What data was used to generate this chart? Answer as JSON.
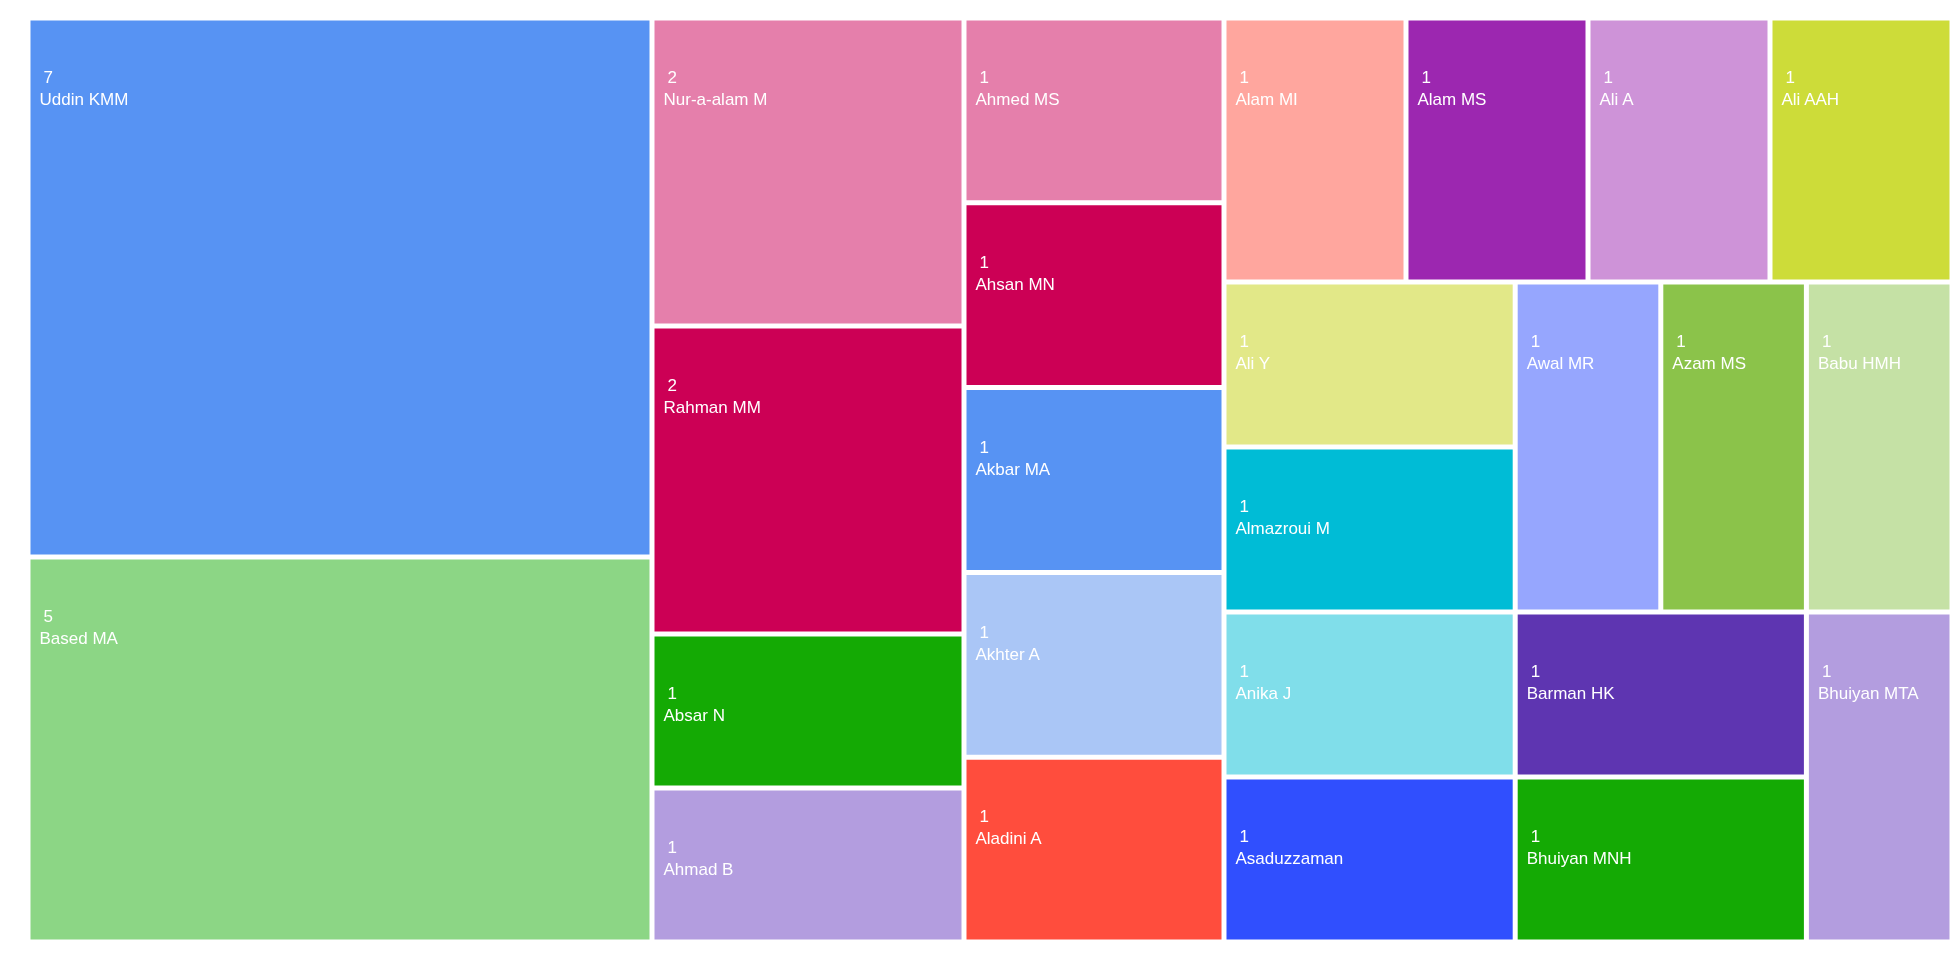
{
  "chart_data": {
    "type": "other",
    "data_labels": true,
    "categories": [
      "Uddin KMM",
      "Based MA",
      "Nur-a-alam M",
      "Rahman MM",
      "Absar N",
      "Ahmad B",
      "Ahmed MS",
      "Ahsan MN",
      "Akbar MA",
      "Akhter A",
      "Aladini A",
      "Alam MI",
      "Alam MS",
      "Ali A",
      "Ali AAH",
      "Ali Y",
      "Almazroui M",
      "Anika J",
      "Asaduzzaman",
      "Awal MR",
      "Azam MS",
      "Babu HMH",
      "Barman HK",
      "Bhuiyan MNH",
      "Bhuiyan MTA"
    ],
    "values": [
      7,
      5,
      2,
      2,
      1,
      1,
      1,
      1,
      1,
      1,
      1,
      1,
      1,
      1,
      1,
      1,
      1,
      1,
      1,
      1,
      1,
      1,
      1,
      1,
      1
    ],
    "colors": [
      "#5793f3",
      "#8cd685",
      "#e57fab",
      "#cc0055",
      "#14aa04",
      "#b39ddf",
      "#e57fab",
      "#cc0055",
      "#5793f3",
      "#aac6f6",
      "#ff4d3d",
      "#ffa69e",
      "#9c27b0",
      "#ce93d8",
      "#cddc39",
      "#e2e888",
      "#00bcd6",
      "#80deea",
      "#304ffe",
      "#96a6fe",
      "#8bc34a",
      "#c5e1a5",
      "#5e35b1",
      "#14aa04",
      "#b39ddf"
    ]
  }
}
